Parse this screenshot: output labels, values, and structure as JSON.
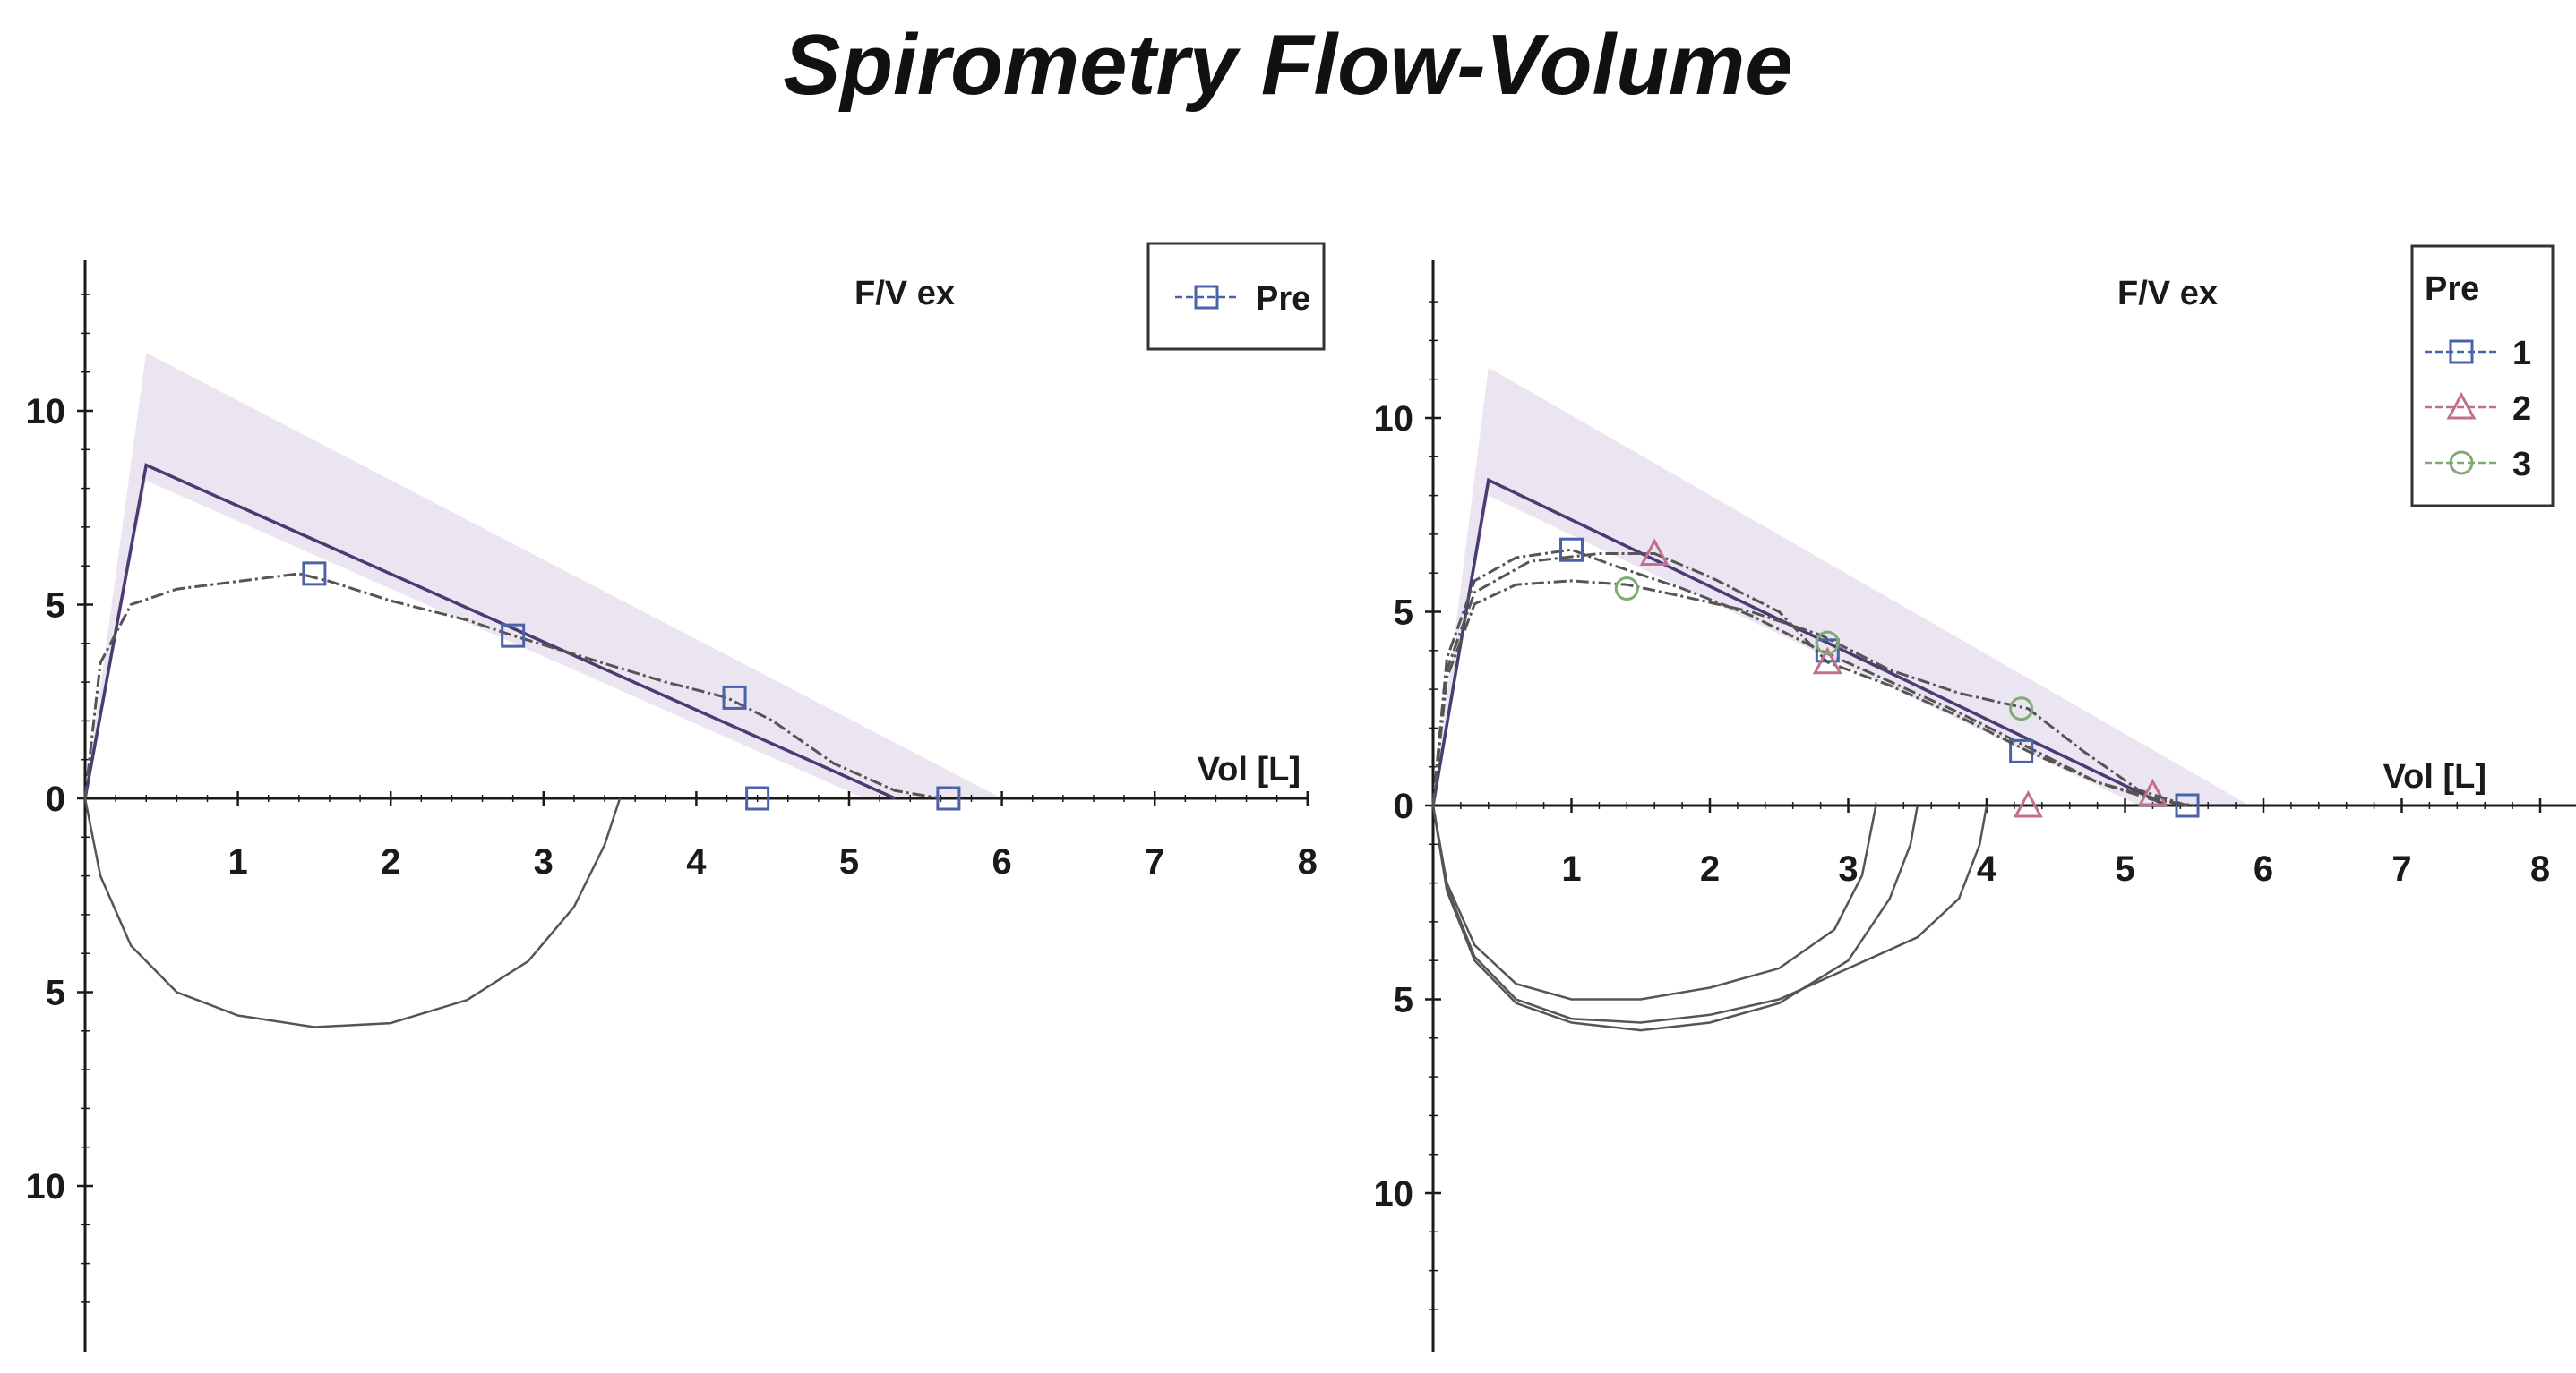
{
  "title": "Spirometry Flow-Volume",
  "colors": {
    "axis": "#1a1a1a",
    "predicted": "#4a3b73",
    "shading": "#e7e0ee",
    "trace": "#555555",
    "series1": "#4a63a8",
    "series2": "#c0708a",
    "series3": "#7faa76"
  },
  "chart_data": [
    {
      "type": "line",
      "ylabel": "F/V ex",
      "xlabel": "Vol [L]",
      "xlim": [
        0,
        8
      ],
      "ylim": [
        -13.5,
        13.5
      ],
      "x_ticks": [
        "1",
        "2",
        "3",
        "4",
        "5",
        "6",
        "7",
        "8"
      ],
      "y_ticks": [
        {
          "value": 10,
          "label": "10"
        },
        {
          "value": 5,
          "label": "5"
        },
        {
          "value": 0,
          "label": "0"
        },
        {
          "value": -5,
          "label": "5"
        },
        {
          "value": -10,
          "label": "10"
        }
      ],
      "legend": {
        "title": "",
        "position": "top-right"
      },
      "predicted": {
        "x": [
          0,
          0.4,
          5.3
        ],
        "y": [
          0,
          8.6,
          0
        ]
      },
      "predicted_band": {
        "upper": {
          "x": [
            0.4,
            6.0
          ],
          "y": [
            11.5,
            0
          ]
        },
        "lower": {
          "x": [
            0.4,
            5.1
          ],
          "y": [
            8.2,
            0
          ]
        }
      },
      "series": [
        {
          "name": "Pre",
          "marker": "square",
          "color_key": "series1",
          "expiratory": {
            "x": [
              0,
              0.1,
              0.3,
              0.6,
              1.0,
              1.4,
              1.6,
              2.0,
              2.5,
              2.8,
              3.3,
              3.8,
              4.2,
              4.5,
              4.9,
              5.3,
              5.6
            ],
            "y": [
              0,
              3.5,
              5.0,
              5.4,
              5.6,
              5.8,
              5.6,
              5.1,
              4.6,
              4.2,
              3.6,
              3.0,
              2.6,
              2.0,
              0.9,
              0.2,
              0
            ]
          },
          "inspiratory": {
            "x": [
              0,
              0.1,
              0.3,
              0.6,
              1.0,
              1.5,
              2.0,
              2.5,
              2.9,
              3.2,
              3.4,
              3.5
            ],
            "y": [
              0,
              -2.0,
              -3.8,
              -5.0,
              -5.6,
              -5.9,
              -5.8,
              -5.2,
              -4.2,
              -2.8,
              -1.2,
              0
            ]
          },
          "markers": [
            {
              "x": 1.5,
              "y": 5.8
            },
            {
              "x": 2.8,
              "y": 4.2
            },
            {
              "x": 4.25,
              "y": 2.6
            },
            {
              "x": 4.4,
              "y": 0
            },
            {
              "x": 5.65,
              "y": 0
            }
          ]
        }
      ]
    },
    {
      "type": "line",
      "ylabel": "F/V ex",
      "xlabel": "Vol [L]",
      "xlim": [
        0,
        8
      ],
      "ylim": [
        -13.5,
        13.5
      ],
      "x_ticks": [
        "1",
        "2",
        "3",
        "4",
        "5",
        "6",
        "7",
        "8"
      ],
      "y_ticks": [
        {
          "value": 10,
          "label": "10"
        },
        {
          "value": 5,
          "label": "5"
        },
        {
          "value": 0,
          "label": "0"
        },
        {
          "value": -5,
          "label": "5"
        },
        {
          "value": -10,
          "label": "10"
        }
      ],
      "legend": {
        "title": "Pre",
        "position": "top-right"
      },
      "predicted": {
        "x": [
          0,
          0.4,
          5.3
        ],
        "y": [
          0,
          8.4,
          0
        ]
      },
      "predicted_band": {
        "upper": {
          "x": [
            0.4,
            5.9
          ],
          "y": [
            11.3,
            0
          ]
        },
        "lower": {
          "x": [
            0.4,
            5.1
          ],
          "y": [
            8.0,
            0
          ]
        }
      },
      "series": [
        {
          "name": "1",
          "marker": "square",
          "color_key": "series1",
          "expiratory": {
            "x": [
              0,
              0.1,
              0.3,
              0.6,
              1.0,
              1.3,
              1.8,
              2.3,
              2.8,
              3.3,
              3.8,
              4.3,
              4.8,
              5.2,
              5.5
            ],
            "y": [
              0,
              3.8,
              5.8,
              6.4,
              6.6,
              6.2,
              5.6,
              4.9,
              4.0,
              3.2,
              2.4,
              1.5,
              0.6,
              0.15,
              0
            ]
          },
          "inspiratory": {
            "x": [
              0,
              0.1,
              0.3,
              0.6,
              1.0,
              1.5,
              2.0,
              2.5,
              2.9,
              3.1,
              3.2
            ],
            "y": [
              0,
              -2.0,
              -3.6,
              -4.6,
              -5.0,
              -5.0,
              -4.7,
              -4.2,
              -3.2,
              -1.8,
              0
            ]
          },
          "markers": [
            {
              "x": 1.0,
              "y": 6.6
            },
            {
              "x": 2.85,
              "y": 4.0
            },
            {
              "x": 4.25,
              "y": 1.4
            },
            {
              "x": 5.45,
              "y": 0
            }
          ]
        },
        {
          "name": "2",
          "marker": "triangle",
          "color_key": "series2",
          "expiratory": {
            "x": [
              0,
              0.1,
              0.3,
              0.7,
              1.2,
              1.6,
              2.0,
              2.5,
              2.85,
              3.3,
              3.8,
              4.3,
              4.8,
              5.2,
              5.45
            ],
            "y": [
              0,
              3.5,
              5.5,
              6.3,
              6.5,
              6.5,
              5.9,
              5.0,
              3.7,
              3.1,
              2.3,
              1.4,
              0.6,
              0.2,
              0
            ]
          },
          "inspiratory": {
            "x": [
              0,
              0.1,
              0.3,
              0.6,
              1.0,
              1.5,
              2.0,
              2.5,
              3.0,
              3.3,
              3.45,
              3.5
            ],
            "y": [
              0,
              -2.2,
              -4.0,
              -5.1,
              -5.6,
              -5.8,
              -5.6,
              -5.1,
              -4.0,
              -2.4,
              -1.0,
              0
            ]
          },
          "markers": [
            {
              "x": 1.6,
              "y": 6.5
            },
            {
              "x": 2.85,
              "y": 3.7
            },
            {
              "x": 4.3,
              "y": 0
            },
            {
              "x": 5.2,
              "y": 0.3
            }
          ]
        },
        {
          "name": "3",
          "marker": "circle",
          "color_key": "series3",
          "expiratory": {
            "x": [
              0,
              0.1,
              0.3,
              0.6,
              1.0,
              1.4,
              1.8,
              2.3,
              2.8,
              3.3,
              3.8,
              4.3,
              4.7,
              5.1,
              5.45
            ],
            "y": [
              0,
              3.3,
              5.2,
              5.7,
              5.8,
              5.7,
              5.4,
              5.0,
              4.4,
              3.5,
              2.9,
              2.5,
              1.4,
              0.4,
              0
            ]
          },
          "inspiratory": {
            "x": [
              0,
              0.1,
              0.3,
              0.6,
              1.0,
              1.5,
              2.0,
              2.5,
              3.0,
              3.5,
              3.8,
              3.95,
              4.0
            ],
            "y": [
              0,
              -2.1,
              -3.9,
              -5.0,
              -5.5,
              -5.6,
              -5.4,
              -5.0,
              -4.2,
              -3.4,
              -2.4,
              -1.0,
              0
            ]
          },
          "markers": [
            {
              "x": 1.4,
              "y": 5.6
            },
            {
              "x": 2.85,
              "y": 4.2
            },
            {
              "x": 4.25,
              "y": 2.5
            }
          ]
        }
      ]
    }
  ]
}
